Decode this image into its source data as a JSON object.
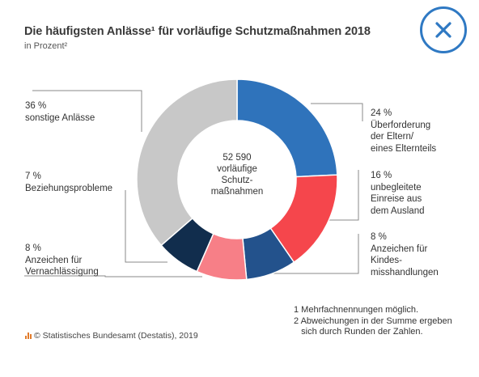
{
  "title": "Die häufigsten Anlässe¹ für vorläufige Schutzmaßnahmen 2018",
  "subtitle": "in Prozent²",
  "close_icon": "close-icon",
  "accent_color": "#2f79c3",
  "center_label": [
    "52 590",
    "vorläufige",
    "Schutz-",
    "maßnahmen"
  ],
  "chart_data": {
    "type": "pie",
    "title": "Die häufigsten Anlässe¹ für vorläufige Schutzmaßnahmen 2018",
    "unit": "in Prozent²",
    "total": "52 590 vorläufige Schutzmaßnahmen",
    "slices": [
      {
        "pct": "24 %",
        "value": 24,
        "lines": [
          "Überforderung",
          "der Eltern/",
          "eines Elternteils"
        ],
        "color": "#2f73bb"
      },
      {
        "pct": "16 %",
        "value": 16,
        "lines": [
          "unbegleitete",
          "Einreise aus",
          "dem Ausland"
        ],
        "color": "#f5464c"
      },
      {
        "pct": "8 %",
        "value": 8,
        "lines": [
          "Anzeichen für",
          "Kindes-",
          "misshandlungen"
        ],
        "color": "#23528c"
      },
      {
        "pct": "8 %",
        "value": 8,
        "lines": [
          "Anzeichen für",
          "Vernachlässigung"
        ],
        "color": "#f77f87"
      },
      {
        "pct": "7 %",
        "value": 7,
        "lines": [
          "Beziehungsprobleme"
        ],
        "color": "#112d4d"
      },
      {
        "pct": "36 %",
        "value": 36,
        "lines": [
          "sonstige Anlässe"
        ],
        "color": "#c8c8c8"
      }
    ]
  },
  "footnotes": [
    "1 Mehrfachnennungen möglich.",
    "2 Abweichungen in der Summe ergeben",
    "   sich durch Runden der Zahlen."
  ],
  "source": "© Statistisches Bundesamt (Destatis), 2019"
}
